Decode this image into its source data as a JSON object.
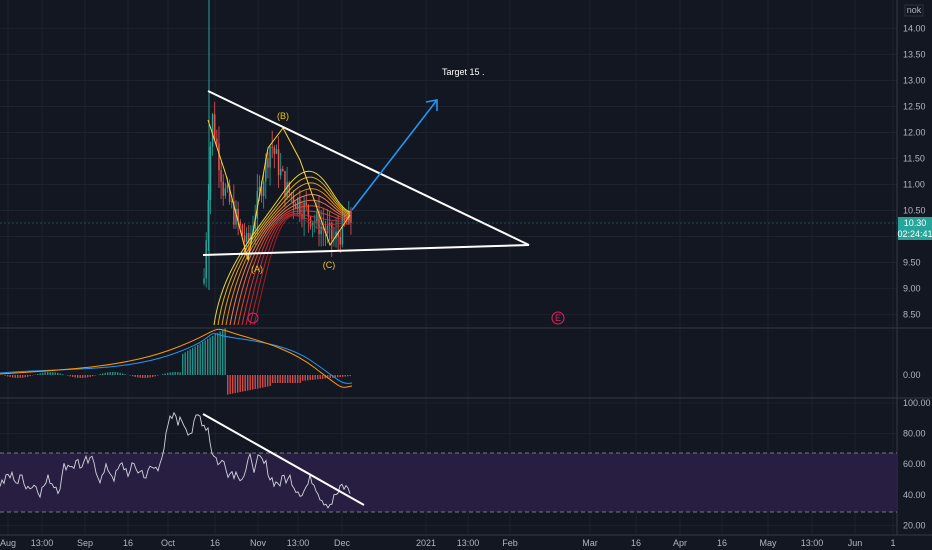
{
  "currency": "nok",
  "current_price": "10.30",
  "countdown": "02:24:41",
  "colors": {
    "background": "#131722",
    "grid": "#1e222d",
    "up": "#26a69a",
    "down": "#ef5350",
    "price_badge": "#26a69a",
    "trendline": "#ffffff",
    "target_arrow": "#2196f3",
    "wave_label": "#f0c419",
    "rsi_line": "#d1d4dc",
    "rsi_band": "#2a1f45"
  },
  "annotations": {
    "target": "Target 15 .",
    "wave_a": "(A)",
    "wave_b": "(B)",
    "wave_c": "(C)",
    "marker_e": "E"
  },
  "chart_data": [
    {
      "type": "candlestick",
      "title": "",
      "ylim": [
        8.3,
        14.2
      ],
      "y_ticks": [
        "14.00",
        "13.50",
        "13.00",
        "12.50",
        "12.00",
        "11.50",
        "11.00",
        "10.50",
        "10.00",
        "9.50",
        "9.00",
        "8.50"
      ],
      "x_ticks": [
        "Aug",
        "13:00",
        "Sep",
        "16",
        "Oct",
        "16",
        "Nov",
        "13:00",
        "Dec",
        "2021",
        "13:00",
        "Feb",
        "Mar",
        "16",
        "Apr",
        "16",
        "May",
        "13:00",
        "Jun",
        "1"
      ],
      "trendlines": [
        {
          "name": "upper-resistance",
          "from": [
            "Oct 13",
            12.75
          ],
          "to": [
            "Jan 28",
            9.8
          ]
        },
        {
          "name": "lower-support",
          "from": [
            "Oct 8",
            9.7
          ],
          "to": [
            "Jan 28",
            9.8
          ]
        }
      ],
      "target_arrow": {
        "label": "Target 15 .",
        "from": [
          "Dec 3",
          10.4
        ],
        "to": [
          "Dec 30",
          12.6
        ]
      },
      "waves": [
        {
          "label": "(A)",
          "date": "Oct 28",
          "price": 9.6
        },
        {
          "label": "(B)",
          "date": "Nov 4",
          "price": 12.05
        },
        {
          "label": "(C)",
          "date": "Nov 28",
          "price": 9.75
        }
      ]
    },
    {
      "type": "histogram",
      "title": "",
      "y_ticks": [
        "0.00"
      ]
    },
    {
      "type": "line",
      "title": "",
      "ylim": [
        15,
        102
      ],
      "y_ticks": [
        "100.00",
        "80.00",
        "60.00",
        "40.00",
        "20.00"
      ],
      "bands": [
        30,
        70
      ],
      "trendline": {
        "from": [
          "Oct 13",
          94
        ],
        "to": [
          "Dec 8",
          36
        ]
      }
    }
  ]
}
